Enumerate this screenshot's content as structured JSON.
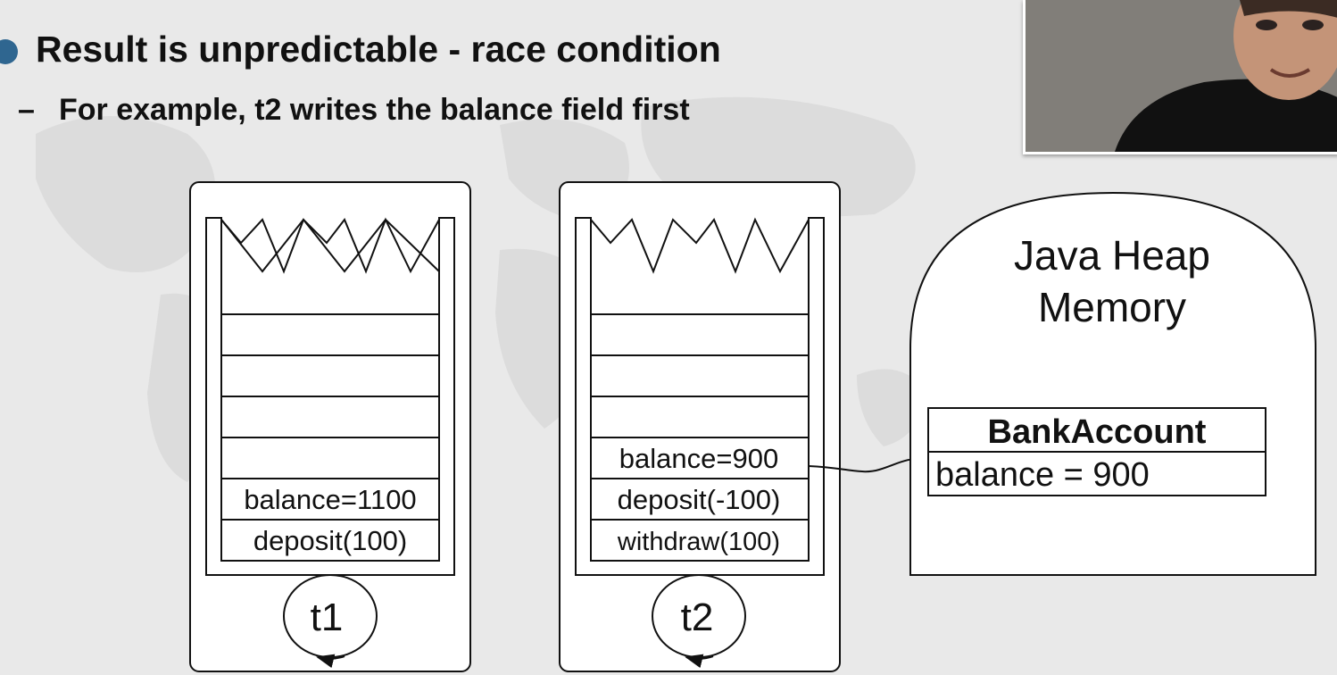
{
  "slide": {
    "bullet": "Result is unpredictable - race condition",
    "sub_bullet_dash": "–",
    "sub_bullet": "For example, t2 writes the balance field first"
  },
  "thread1": {
    "frames": [
      "balance=1100",
      "deposit(100)"
    ],
    "label": "t1"
  },
  "thread2": {
    "frames": [
      "balance=900",
      "deposit(-100)",
      "withdraw(100)"
    ],
    "label": "t2"
  },
  "heap": {
    "title_line1": "Java Heap",
    "title_line2": "Memory",
    "object_name": "BankAccount",
    "object_field": "balance = 900"
  },
  "colors": {
    "bullet": "#2f6690",
    "background": "#e9e9e9"
  },
  "icons": [
    "bullet-dot-icon",
    "circular-arrow-icon",
    "connector-arrow-icon",
    "webcam-presenter-icon"
  ]
}
